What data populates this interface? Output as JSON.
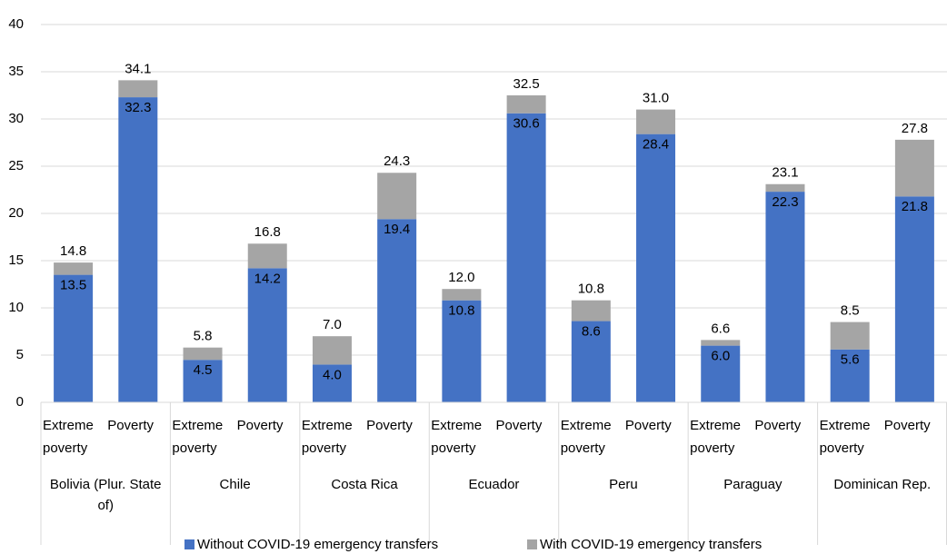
{
  "chart_data": {
    "type": "stacked_bar",
    "categories": [
      "Extreme poverty",
      "Poverty",
      "Extreme poverty",
      "Poverty",
      "Extreme poverty",
      "Poverty",
      "Extreme poverty",
      "Poverty",
      "Extreme poverty",
      "Poverty",
      "Extreme poverty",
      "Poverty",
      "Extreme poverty",
      "Poverty"
    ],
    "groups": [
      "Bolivia (Plur. State of)",
      "Chile",
      "Costa Rica",
      "Ecuador",
      "Peru",
      "Paraguay",
      "Dominican Rep."
    ],
    "series": [
      {
        "name": "Without COVID-19 emergency transfers",
        "color": "#4472c4",
        "values": [
          13.5,
          32.3,
          4.5,
          14.2,
          4.0,
          19.4,
          10.8,
          30.6,
          8.6,
          28.4,
          6.0,
          22.3,
          5.6,
          21.8
        ],
        "value_labels": [
          "13.5",
          "32.3",
          "4.5",
          "14.2",
          "4.0",
          "19.4",
          "10.8",
          "30.6",
          "8.6",
          "28.4",
          "6.0",
          "22.3",
          "5.6",
          "21.8"
        ]
      },
      {
        "name": "With COVID-19 emergency transfers",
        "color": "#a5a5a5",
        "values": [
          1.3,
          1.8,
          1.3,
          2.6,
          3.0,
          4.9,
          1.2,
          1.9,
          2.2,
          2.6,
          0.6,
          0.8,
          2.9,
          6.0
        ]
      }
    ],
    "totals": {
      "values": [
        14.8,
        34.1,
        5.8,
        16.8,
        7.0,
        24.3,
        12.0,
        32.5,
        10.8,
        31.0,
        6.6,
        23.1,
        8.5,
        27.8
      ],
      "value_labels": [
        "14.8",
        "34.1",
        "5.8",
        "16.8",
        "7.0",
        "24.3",
        "12.0",
        "32.5",
        "10.8",
        "31.0",
        "6.6",
        "23.1",
        "8.5",
        "27.8"
      ]
    },
    "ylim": [
      0,
      40
    ],
    "yticks": [
      0,
      5,
      10,
      15,
      20,
      25,
      30,
      35,
      40
    ],
    "grid": true
  }
}
